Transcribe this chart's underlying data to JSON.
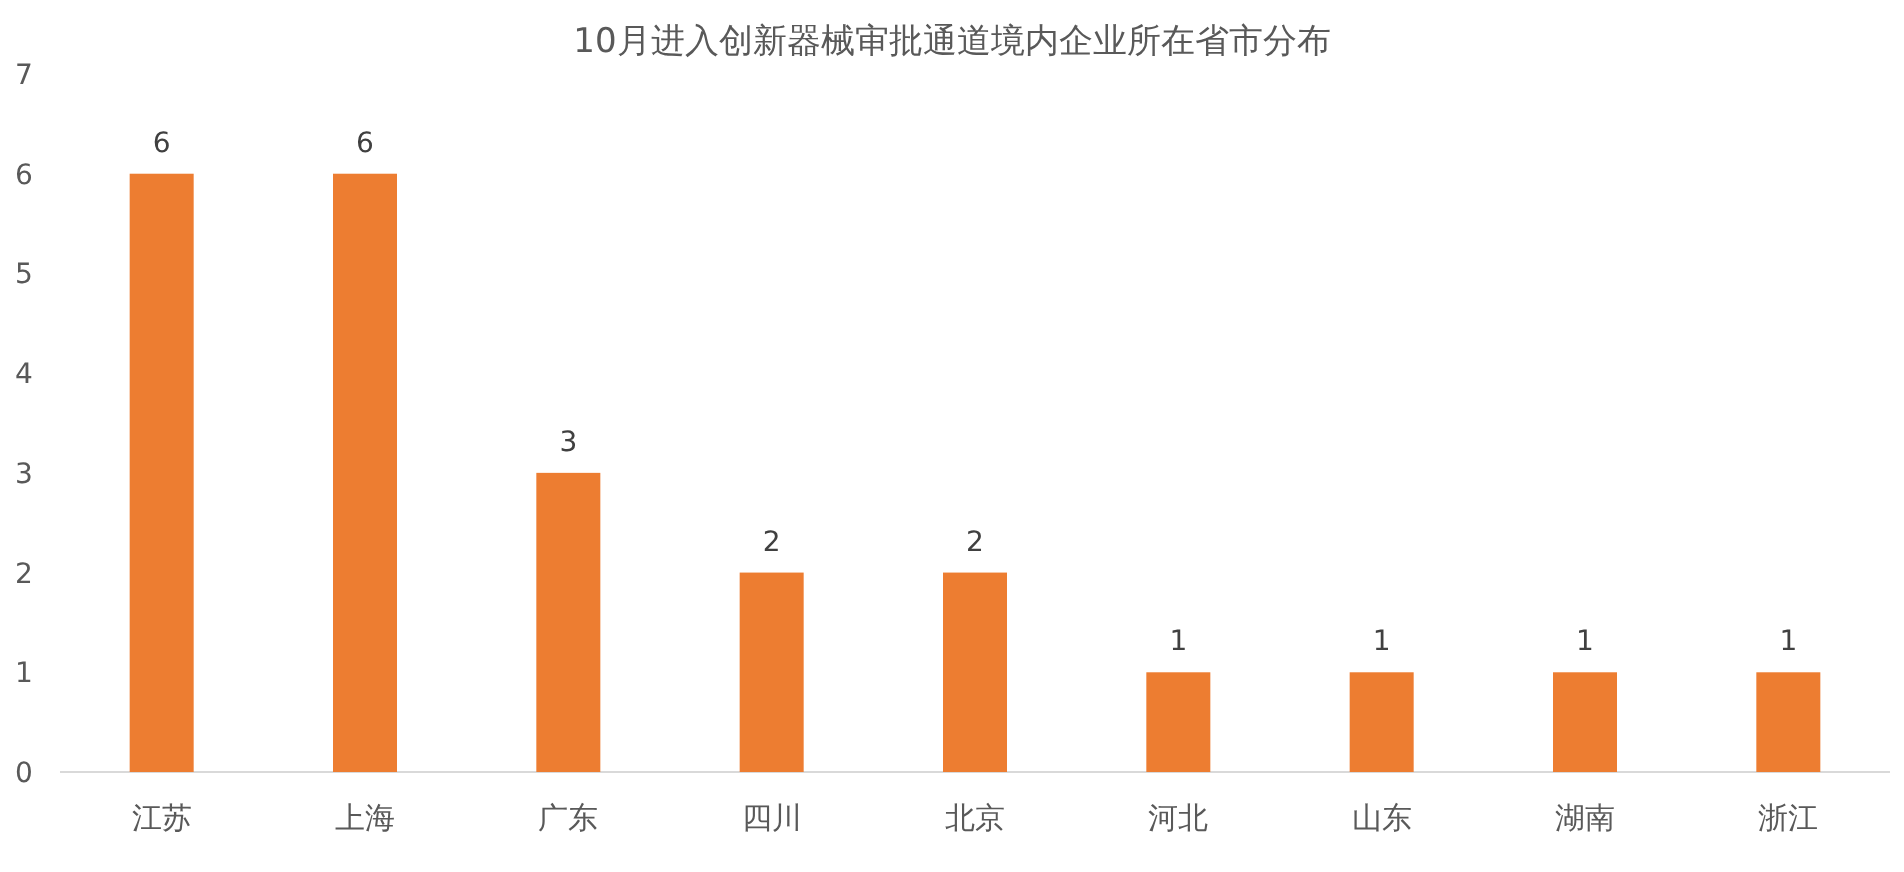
{
  "chart_data": {
    "type": "bar",
    "title": "10月进入创新器械审批通道境内企业所在省市分布",
    "categories": [
      "江苏",
      "上海",
      "广东",
      "四川",
      "北京",
      "河北",
      "山东",
      "湖南",
      "浙江"
    ],
    "values": [
      6,
      6,
      3,
      2,
      2,
      1,
      1,
      1,
      1
    ],
    "color": "#ed7d31",
    "ylim": [
      0,
      7
    ],
    "yticks": [
      0,
      1,
      2,
      3,
      4,
      5,
      6,
      7
    ],
    "data_labels": true,
    "grid": false
  }
}
